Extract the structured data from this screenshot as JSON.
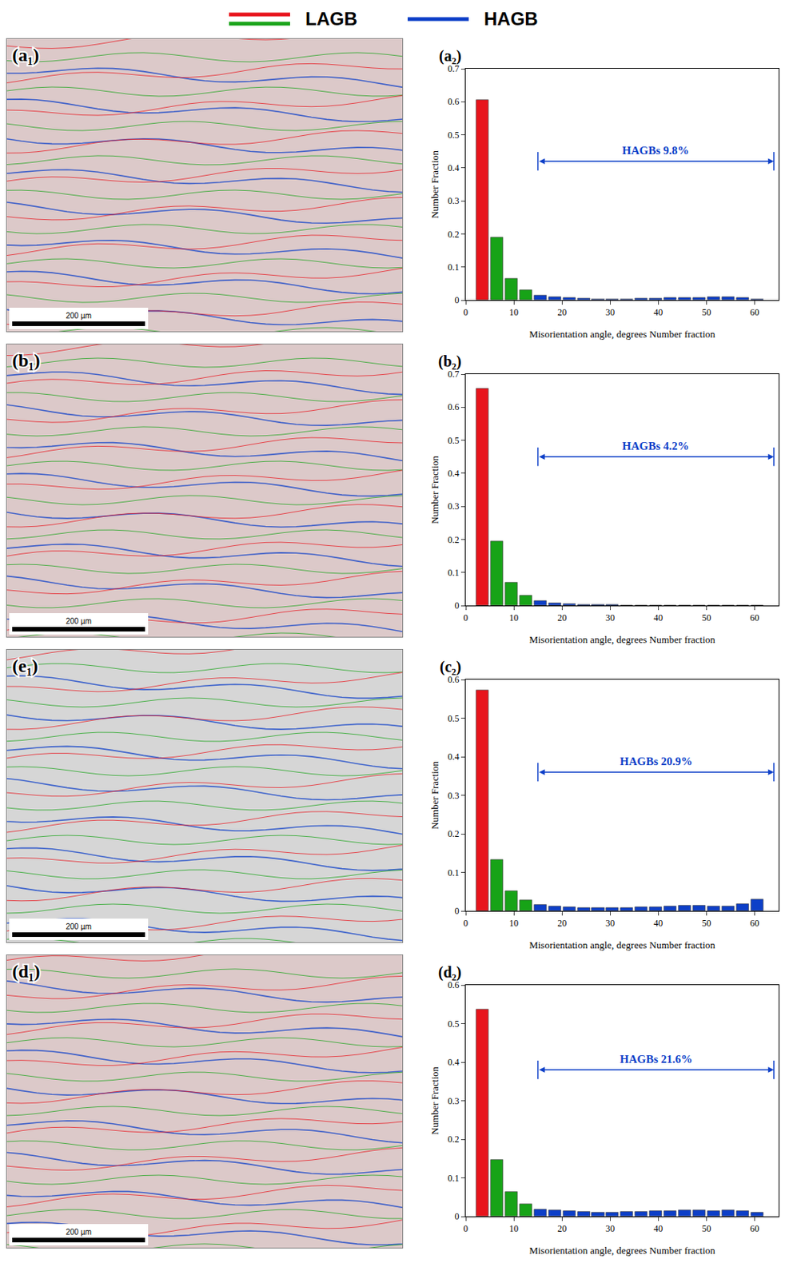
{
  "legend": [
    {
      "label": "LAGB",
      "colors": [
        "#e8141c",
        "#17a317"
      ]
    },
    {
      "label": "HAGB",
      "colors": [
        "#0d3fc8"
      ]
    }
  ],
  "micrographs": [
    {
      "label": "(a₁)",
      "scale_bar": "200 µm"
    },
    {
      "label": "(b₁)",
      "scale_bar": "200 µm"
    },
    {
      "label": "(e₁)",
      "scale_bar": "200 µm"
    },
    {
      "label": "(d₁)",
      "scale_bar": "200 µm"
    }
  ],
  "chart_data": [
    {
      "type": "histogram",
      "label": "(a₂)",
      "x_label": "Misorientation angle, degrees Number fraction",
      "y_label": "Number Fraction",
      "bins": [
        2,
        5,
        8,
        11,
        14,
        17,
        20,
        23,
        26,
        29,
        32,
        35,
        38,
        41,
        44,
        47,
        50,
        53,
        56,
        59,
        62
      ],
      "values": [
        0.605,
        0.19,
        0.065,
        0.03,
        0.015,
        0.01,
        0.006,
        0.004,
        0.003,
        0.003,
        0.003,
        0.004,
        0.005,
        0.006,
        0.007,
        0.008,
        0.009,
        0.009,
        0.008,
        0.003
      ],
      "colors": [
        "#e8141c",
        "#17a317",
        "#17a317",
        "#17a317",
        "#0d3fc8",
        "#0d3fc8",
        "#0d3fc8",
        "#0d3fc8",
        "#0d3fc8",
        "#0d3fc8",
        "#0d3fc8",
        "#0d3fc8",
        "#0d3fc8",
        "#0d3fc8",
        "#0d3fc8",
        "#0d3fc8",
        "#0d3fc8",
        "#0d3fc8",
        "#0d3fc8",
        "#0d3fc8"
      ],
      "xlim": [
        0,
        65
      ],
      "xticks": [
        0,
        10,
        20,
        30,
        40,
        50,
        60
      ],
      "ylim": [
        0,
        0.7
      ],
      "yticks": [
        0,
        0.1,
        0.2,
        0.3,
        0.4,
        0.5,
        0.6,
        0.7
      ],
      "annotation": {
        "text": "HAGBs 9.8%",
        "x": [
          15,
          64
        ],
        "y": 0.42
      }
    },
    {
      "type": "histogram",
      "label": "(b₂)",
      "x_label": "Misorientation angle, degrees Number fraction",
      "y_label": "Number Fraction",
      "bins": [
        2,
        5,
        8,
        11,
        14,
        17,
        20,
        23,
        26,
        29,
        32,
        35,
        38,
        41,
        44,
        47,
        50,
        53,
        56,
        59,
        62
      ],
      "values": [
        0.655,
        0.195,
        0.07,
        0.03,
        0.015,
        0.008,
        0.005,
        0.003,
        0.002,
        0.002,
        0.001,
        0.001,
        0.001,
        0.001,
        0.001,
        0.001,
        0.001,
        0.001,
        0.001,
        0.001
      ],
      "colors": [
        "#e8141c",
        "#17a317",
        "#17a317",
        "#17a317",
        "#0d3fc8",
        "#0d3fc8",
        "#0d3fc8",
        "#0d3fc8",
        "#0d3fc8",
        "#0d3fc8",
        "#0d3fc8",
        "#0d3fc8",
        "#0d3fc8",
        "#0d3fc8",
        "#0d3fc8",
        "#0d3fc8",
        "#0d3fc8",
        "#0d3fc8",
        "#0d3fc8",
        "#0d3fc8"
      ],
      "xlim": [
        0,
        65
      ],
      "xticks": [
        0,
        10,
        20,
        30,
        40,
        50,
        60
      ],
      "ylim": [
        0,
        0.7
      ],
      "yticks": [
        0,
        0.1,
        0.2,
        0.3,
        0.4,
        0.5,
        0.6,
        0.7
      ],
      "annotation": {
        "text": "HAGBs 4.2%",
        "x": [
          15,
          64
        ],
        "y": 0.45
      }
    },
    {
      "type": "histogram",
      "label": "(c₂)",
      "x_label": "Misorientation angle, degrees Number fraction",
      "y_label": "Number Fraction",
      "bins": [
        2,
        5,
        8,
        11,
        14,
        17,
        20,
        23,
        26,
        29,
        32,
        35,
        38,
        41,
        44,
        47,
        50,
        53,
        56,
        59,
        62
      ],
      "values": [
        0.572,
        0.133,
        0.052,
        0.027,
        0.015,
        0.011,
        0.009,
        0.008,
        0.008,
        0.008,
        0.008,
        0.009,
        0.01,
        0.011,
        0.013,
        0.014,
        0.012,
        0.011,
        0.018,
        0.03
      ],
      "colors": [
        "#e8141c",
        "#17a317",
        "#17a317",
        "#17a317",
        "#0d3fc8",
        "#0d3fc8",
        "#0d3fc8",
        "#0d3fc8",
        "#0d3fc8",
        "#0d3fc8",
        "#0d3fc8",
        "#0d3fc8",
        "#0d3fc8",
        "#0d3fc8",
        "#0d3fc8",
        "#0d3fc8",
        "#0d3fc8",
        "#0d3fc8",
        "#0d3fc8",
        "#0d3fc8"
      ],
      "xlim": [
        0,
        65
      ],
      "xticks": [
        0,
        10,
        20,
        30,
        40,
        50,
        60
      ],
      "ylim": [
        0,
        0.6
      ],
      "yticks": [
        0,
        0.1,
        0.2,
        0.3,
        0.4,
        0.5,
        0.6
      ],
      "annotation": {
        "text": "HAGBs 20.9%",
        "x": [
          15,
          64
        ],
        "y": 0.36
      }
    },
    {
      "type": "histogram",
      "label": "(d₂)",
      "x_label": "Misorientation angle, degrees Number fraction",
      "y_label": "Number Fraction",
      "bins": [
        2,
        5,
        8,
        11,
        14,
        17,
        20,
        23,
        26,
        29,
        32,
        35,
        38,
        41,
        44,
        47,
        50,
        53,
        56,
        59,
        62
      ],
      "values": [
        0.537,
        0.147,
        0.063,
        0.032,
        0.018,
        0.016,
        0.013,
        0.011,
        0.01,
        0.01,
        0.011,
        0.012,
        0.013,
        0.014,
        0.015,
        0.015,
        0.014,
        0.015,
        0.013,
        0.01
      ],
      "colors": [
        "#e8141c",
        "#17a317",
        "#17a317",
        "#17a317",
        "#0d3fc8",
        "#0d3fc8",
        "#0d3fc8",
        "#0d3fc8",
        "#0d3fc8",
        "#0d3fc8",
        "#0d3fc8",
        "#0d3fc8",
        "#0d3fc8",
        "#0d3fc8",
        "#0d3fc8",
        "#0d3fc8",
        "#0d3fc8",
        "#0d3fc8",
        "#0d3fc8",
        "#0d3fc8"
      ],
      "xlim": [
        0,
        65
      ],
      "xticks": [
        0,
        10,
        20,
        30,
        40,
        50,
        60
      ],
      "ylim": [
        0,
        0.6
      ],
      "yticks": [
        0,
        0.1,
        0.2,
        0.3,
        0.4,
        0.5,
        0.6
      ],
      "annotation": {
        "text": "HAGBs 21.6%",
        "x": [
          15,
          64
        ],
        "y": 0.38
      }
    }
  ]
}
